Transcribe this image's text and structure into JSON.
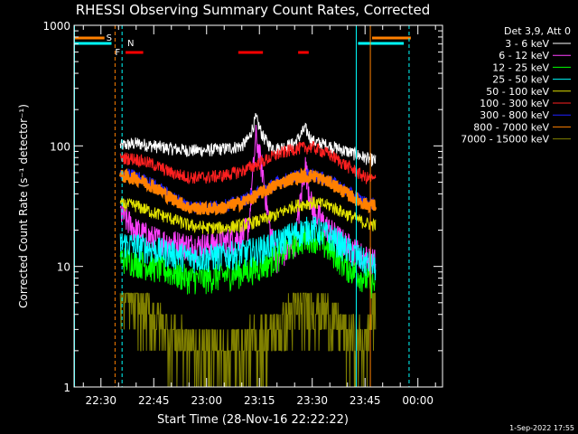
{
  "chart_data": {
    "type": "line",
    "title": "RHESSI Observing Summary Count Rates, Corrected",
    "xlabel": "Start Time (28-Nov-16 22:22:22)",
    "ylabel": "Corrected Count Rate (s⁻¹ detector⁻¹)",
    "ylog": true,
    "ylim": [
      1,
      1000
    ],
    "xlim": [
      "22:22:22",
      "00:07:00"
    ],
    "x_ticks": [
      "22:30",
      "22:45",
      "23:00",
      "23:15",
      "23:30",
      "23:45",
      "00:00"
    ],
    "y_ticks": [
      "1",
      "10",
      "100",
      "1000"
    ],
    "legend_header": "Det 3,9, Att 0",
    "footer_date": "1-Sep-2022 17:55",
    "flag_labels": {
      "s": "S",
      "n": "N",
      "f": "F"
    },
    "data_start": "22:35:30",
    "data_end": "23:48:00",
    "series": [
      {
        "name": "3 - 6 keV",
        "color": "#ffffff",
        "x": [
          "22:35",
          "22:40",
          "22:45",
          "22:50",
          "22:55",
          "23:00",
          "23:05",
          "23:10",
          "23:12",
          "23:14",
          "23:16",
          "23:18",
          "23:20",
          "23:25",
          "23:28",
          "23:30",
          "23:35",
          "23:40",
          "23:45",
          "23:48"
        ],
        "y": [
          100,
          105,
          100,
          95,
          92,
          92,
          95,
          100,
          115,
          170,
          120,
          100,
          95,
          105,
          140,
          110,
          100,
          90,
          80,
          75
        ]
      },
      {
        "name": "6 - 12 keV",
        "color": "#ff40ff",
        "x": [
          "22:35",
          "22:37",
          "22:40",
          "22:45",
          "22:50",
          "22:55",
          "23:00",
          "23:05",
          "23:10",
          "23:12",
          "23:14",
          "23:16",
          "23:18",
          "23:20",
          "23:25",
          "23:28",
          "23:30",
          "23:35",
          "23:40",
          "23:45",
          "23:48"
        ],
        "y": [
          30,
          25,
          20,
          17,
          16,
          15,
          15,
          16,
          18,
          22,
          120,
          60,
          20,
          12,
          15,
          70,
          30,
          20,
          15,
          12,
          11
        ]
      },
      {
        "name": "12 - 25 keV",
        "color": "#00ff00",
        "x": [
          "22:35",
          "22:40",
          "22:45",
          "22:50",
          "22:55",
          "23:00",
          "23:05",
          "23:10",
          "23:15",
          "23:20",
          "23:25",
          "23:30",
          "23:35",
          "23:40",
          "23:45",
          "23:48"
        ],
        "y": [
          12,
          11,
          10,
          9,
          8,
          8,
          8.5,
          9,
          10,
          12,
          16,
          18,
          14,
          10,
          8,
          7
        ]
      },
      {
        "name": "25 - 50 keV",
        "color": "#00ffff",
        "x": [
          "22:35",
          "22:40",
          "22:45",
          "22:50",
          "22:55",
          "23:00",
          "23:05",
          "23:10",
          "23:15",
          "23:20",
          "23:25",
          "23:30",
          "23:35",
          "23:40",
          "23:45",
          "23:48"
        ],
        "y": [
          16,
          15,
          14,
          13,
          12,
          12,
          12.5,
          13,
          14,
          16,
          19,
          21,
          18,
          14,
          11,
          10
        ]
      },
      {
        "name": "50 - 100 keV",
        "color": "#e0e000",
        "x": [
          "22:35",
          "22:40",
          "22:45",
          "22:50",
          "22:55",
          "23:00",
          "23:05",
          "23:10",
          "23:15",
          "23:20",
          "23:25",
          "23:30",
          "23:35",
          "23:40",
          "23:45",
          "23:48"
        ],
        "y": [
          33,
          32,
          28,
          25,
          22,
          21,
          21,
          22,
          24,
          27,
          32,
          34,
          32,
          27,
          23,
          22
        ]
      },
      {
        "name": "100 - 300 keV",
        "color": "#ff2020",
        "x": [
          "22:35",
          "22:40",
          "22:45",
          "22:50",
          "22:55",
          "23:00",
          "23:05",
          "23:10",
          "23:15",
          "23:20",
          "23:25",
          "23:30",
          "23:35",
          "23:40",
          "23:45",
          "23:48"
        ],
        "y": [
          80,
          78,
          70,
          60,
          55,
          55,
          57,
          62,
          72,
          85,
          95,
          98,
          85,
          68,
          55,
          52
        ]
      },
      {
        "name": "300 - 800 keV",
        "color": "#2020ff",
        "x": [
          "22:35",
          "22:40",
          "22:45",
          "22:50",
          "22:55",
          "23:00",
          "23:05",
          "23:10",
          "23:15",
          "23:20",
          "23:25",
          "23:30",
          "23:35",
          "23:40",
          "23:45",
          "23:48"
        ],
        "y": [
          60,
          56,
          48,
          38,
          32,
          31,
          32,
          35,
          42,
          50,
          56,
          58,
          52,
          42,
          34,
          33
        ]
      },
      {
        "name": "800 - 7000 keV",
        "color": "#ff8000",
        "x": [
          "22:35",
          "22:40",
          "22:45",
          "22:50",
          "22:55",
          "23:00",
          "23:05",
          "23:10",
          "23:15",
          "23:20",
          "23:25",
          "23:30",
          "23:35",
          "23:40",
          "23:45",
          "23:48"
        ],
        "y": [
          57,
          54,
          46,
          37,
          31,
          30,
          31,
          34,
          40,
          48,
          55,
          57,
          50,
          40,
          33,
          32
        ]
      },
      {
        "name": "7000 - 15000 keV",
        "color": "#808000",
        "x": [
          "22:35",
          "22:40",
          "22:45",
          "22:50",
          "22:55",
          "23:00",
          "23:05",
          "23:10",
          "23:15",
          "23:20",
          "23:25",
          "23:30",
          "23:35",
          "23:40",
          "23:45",
          "23:48"
        ],
        "y": [
          5,
          4.5,
          3.5,
          2.5,
          2,
          1.8,
          1.8,
          2,
          2.2,
          2.8,
          3.8,
          4.5,
          3.5,
          2.5,
          2,
          5
        ]
      }
    ]
  }
}
